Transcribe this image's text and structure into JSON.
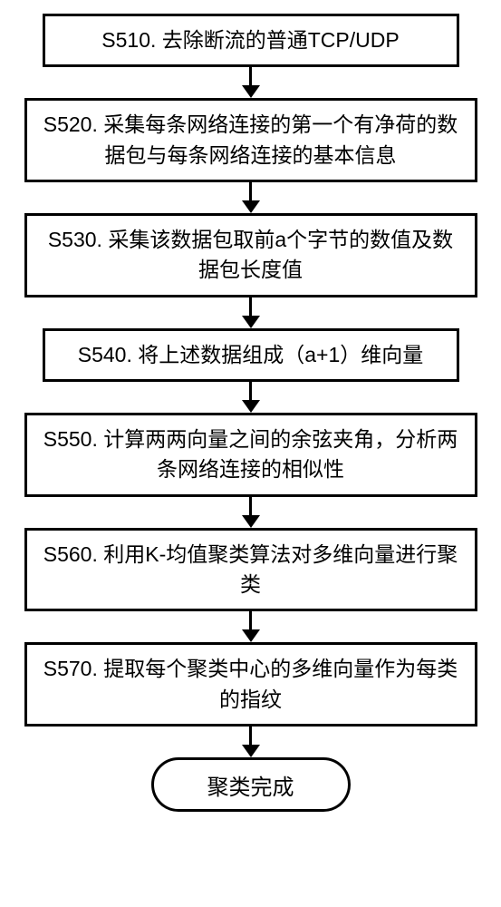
{
  "flowchart": {
    "type": "flowchart",
    "background_color": "#ffffff",
    "border_color": "#000000",
    "border_width": 3,
    "text_color": "#000000",
    "font_size": 23,
    "arrow_color": "#000000",
    "steps": [
      {
        "id": "s510",
        "label": "S510. 去除断流的普通TCP/UDP",
        "lines": 1
      },
      {
        "id": "s520",
        "label": "S520. 采集每条网络连接的第一个有净荷的数据包与每条网络连接的基本信息",
        "lines": 2
      },
      {
        "id": "s530",
        "label": "S530. 采集该数据包取前a个字节的数值及数据包长度值",
        "lines": 2
      },
      {
        "id": "s540",
        "label": "S540. 将上述数据组成（a+1）维向量",
        "lines": 1
      },
      {
        "id": "s550",
        "label": "S550. 计算两两向量之间的余弦夹角，分析两条网络连接的相似性",
        "lines": 2
      },
      {
        "id": "s560",
        "label": "S560. 利用K-均值聚类算法对多维向量进行聚类",
        "lines": 2
      },
      {
        "id": "s570",
        "label": "S570. 提取每个聚类中心的多维向量作为每类的指纹",
        "lines": 2
      }
    ],
    "terminator": {
      "label": "聚类完成",
      "border_radius": 32
    }
  }
}
